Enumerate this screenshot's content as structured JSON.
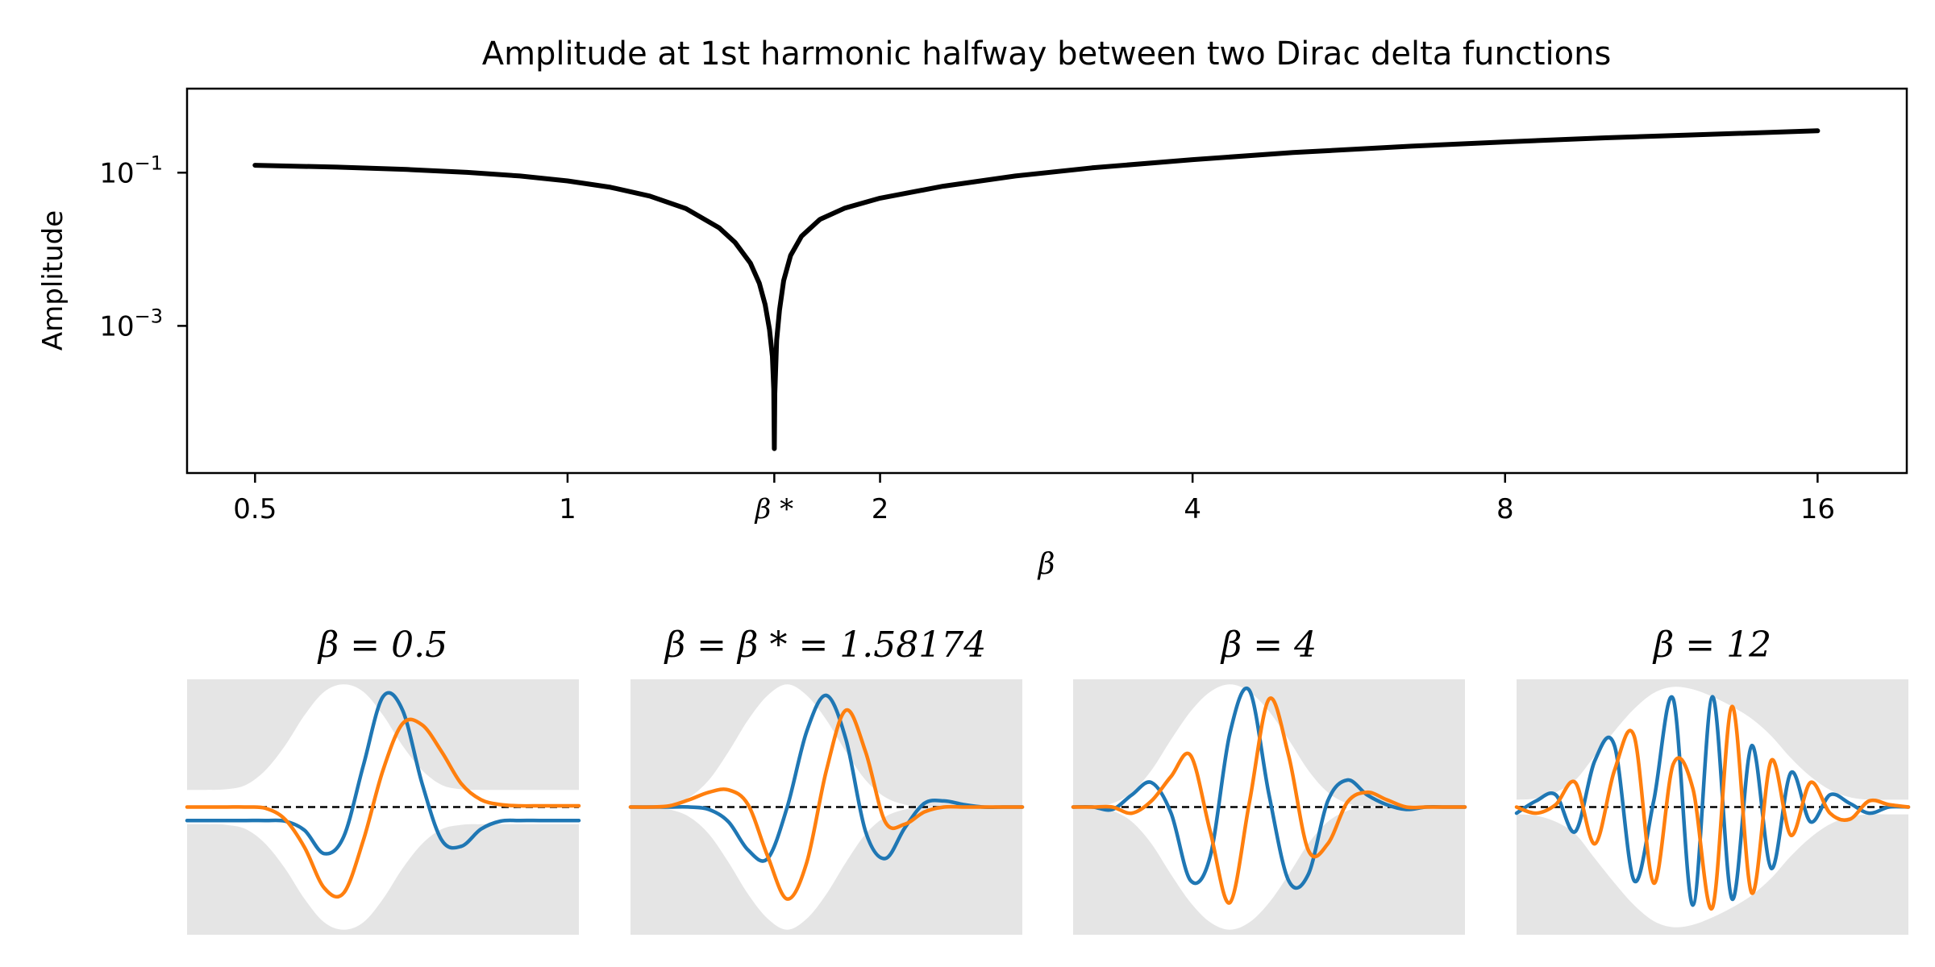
{
  "chart_data": [
    {
      "type": "line",
      "title": "Amplitude at 1st harmonic halfway between two Dirac delta functions",
      "xlabel": "β",
      "ylabel": "Amplitude",
      "xscale": "log2",
      "yscale": "log10",
      "xlim": [
        0.43,
        19.5
      ],
      "ylim": [
        1.2e-05,
        1.25
      ],
      "x_ticks": [
        {
          "value": 0.5,
          "label": "0.5"
        },
        {
          "value": 1,
          "label": "1"
        },
        {
          "value": 1.58174,
          "label": "β *"
        },
        {
          "value": 2,
          "label": "2"
        },
        {
          "value": 4,
          "label": "4"
        },
        {
          "value": 8,
          "label": "8"
        },
        {
          "value": 16,
          "label": "16"
        }
      ],
      "y_ticks": [
        {
          "value": 0.1,
          "base": "10",
          "exp": "−1"
        },
        {
          "value": 0.001,
          "base": "10",
          "exp": "−3"
        }
      ],
      "grid": false,
      "series": [
        {
          "color": "#000000",
          "x": [
            0.5,
            0.6,
            0.7,
            0.8,
            0.9,
            1.0,
            1.1,
            1.2,
            1.3,
            1.4,
            1.45,
            1.5,
            1.53,
            1.55,
            1.565,
            1.575,
            1.58,
            1.58174,
            1.5835,
            1.59,
            1.6,
            1.615,
            1.64,
            1.68,
            1.75,
            1.85,
            2.0,
            2.3,
            2.7,
            3.2,
            4.0,
            5.0,
            6.5,
            8.0,
            10.0,
            12.0,
            16.0
          ],
          "y": [
            0.125,
            0.118,
            0.11,
            0.101,
            0.0905,
            0.078,
            0.0645,
            0.0495,
            0.034,
            0.019,
            0.0123,
            0.0066,
            0.0036,
            0.0019,
            0.0009,
            0.0004,
            0.00015,
            2.5e-05,
            0.00013,
            0.00065,
            0.0016,
            0.0039,
            0.0083,
            0.0148,
            0.0245,
            0.0345,
            0.0465,
            0.0665,
            0.0905,
            0.1155,
            0.148,
            0.183,
            0.222,
            0.252,
            0.285,
            0.31,
            0.352
          ]
        }
      ]
    },
    {
      "type": "line",
      "title": "β = 0.5",
      "beta": 0.5,
      "x": [
        0,
        0.05,
        0.1,
        0.15,
        0.2,
        0.25,
        0.3,
        0.35,
        0.4,
        0.45,
        0.5,
        0.55,
        0.6,
        0.65,
        0.7,
        0.75,
        0.8,
        0.85,
        0.9,
        0.95,
        1
      ],
      "series": [
        {
          "color": "#1f77b4",
          "y": [
            -0.11,
            -0.11,
            -0.11,
            -0.11,
            -0.11,
            -0.115,
            -0.19,
            -0.38,
            -0.24,
            0.34,
            0.9,
            0.79,
            0.19,
            -0.27,
            -0.32,
            -0.18,
            -0.115,
            -0.11,
            -0.11,
            -0.11,
            -0.11
          ]
        },
        {
          "color": "#ff7f0e",
          "y": [
            0.0,
            0.0,
            0.0,
            0.0,
            -0.01,
            -0.1,
            -0.33,
            -0.66,
            -0.7,
            -0.27,
            0.3,
            0.68,
            0.67,
            0.45,
            0.19,
            0.06,
            0.02,
            0.01,
            0.01,
            0.01,
            0.01
          ]
        }
      ],
      "envelope": [
        0.14,
        0.14,
        0.145,
        0.18,
        0.3,
        0.5,
        0.75,
        0.94,
        1.0,
        0.94,
        0.75,
        0.5,
        0.3,
        0.18,
        0.145,
        0.14,
        0.14,
        0.14,
        0.14,
        0.14,
        0.14
      ]
    },
    {
      "type": "line",
      "title": "β = β * = 1.58174",
      "beta": 1.58174,
      "x": [
        0,
        0.05,
        0.1,
        0.15,
        0.2,
        0.25,
        0.3,
        0.35,
        0.4,
        0.45,
        0.5,
        0.55,
        0.6,
        0.65,
        0.7,
        0.75,
        0.8,
        0.85,
        0.9,
        0.95,
        1
      ],
      "series": [
        {
          "color": "#1f77b4",
          "y": [
            0.0,
            0.0,
            0.0,
            0.0,
            -0.02,
            -0.12,
            -0.35,
            -0.42,
            0.0,
            0.62,
            0.91,
            0.55,
            -0.2,
            -0.42,
            -0.17,
            0.03,
            0.05,
            0.02,
            0.0,
            0.0,
            0.0
          ]
        },
        {
          "color": "#ff7f0e",
          "y": [
            0.0,
            0.0,
            0.01,
            0.06,
            0.12,
            0.14,
            0.02,
            -0.4,
            -0.75,
            -0.45,
            0.3,
            0.79,
            0.45,
            -0.12,
            -0.14,
            -0.04,
            0.0,
            0.0,
            0.0,
            0.0,
            0.0
          ]
        }
      ],
      "envelope": [
        0.0,
        0.0,
        0.02,
        0.08,
        0.22,
        0.45,
        0.71,
        0.91,
        1.0,
        0.91,
        0.71,
        0.45,
        0.22,
        0.08,
        0.02,
        0.0,
        0.0,
        0.0,
        0.0,
        0.0,
        0.0
      ]
    },
    {
      "type": "line",
      "title": "β = 4",
      "beta": 4,
      "x": [
        0,
        0.05,
        0.1,
        0.15,
        0.2,
        0.25,
        0.3,
        0.35,
        0.4,
        0.45,
        0.5,
        0.55,
        0.6,
        0.65,
        0.7,
        0.75,
        0.8,
        0.85,
        0.9,
        0.95,
        1
      ],
      "series": [
        {
          "color": "#1f77b4",
          "y": [
            0.0,
            0.0,
            -0.02,
            0.1,
            0.2,
            -0.05,
            -0.6,
            -0.4,
            0.6,
            0.95,
            0.1,
            -0.6,
            -0.55,
            0.05,
            0.22,
            0.1,
            0.02,
            -0.02,
            0.0,
            0.0,
            0.0
          ]
        },
        {
          "color": "#ff7f0e",
          "y": [
            0.0,
            0.0,
            0.0,
            -0.05,
            0.05,
            0.25,
            0.42,
            -0.2,
            -0.78,
            0.04,
            0.88,
            0.42,
            -0.35,
            -0.3,
            0.04,
            0.12,
            0.06,
            0.0,
            0.0,
            0.0,
            0.0
          ]
        }
      ],
      "envelope": [
        0.0,
        0.0,
        0.03,
        0.12,
        0.3,
        0.55,
        0.78,
        0.94,
        1.0,
        0.94,
        0.78,
        0.55,
        0.3,
        0.12,
        0.03,
        0.0,
        0.0,
        0.0,
        0.0,
        0.0,
        0.0
      ]
    },
    {
      "type": "line",
      "title": "β = 12",
      "beta": 12,
      "x": [
        0,
        0.05,
        0.1,
        0.15,
        0.2,
        0.25,
        0.3,
        0.35,
        0.4,
        0.45,
        0.5,
        0.55,
        0.6,
        0.65,
        0.7,
        0.75,
        0.8,
        0.85,
        0.9,
        0.95,
        1
      ],
      "series": [
        {
          "color": "#1f77b4",
          "y": [
            -0.05,
            0.05,
            0.1,
            -0.2,
            0.38,
            0.5,
            -0.6,
            0.05,
            0.88,
            -0.8,
            0.9,
            -0.75,
            0.5,
            -0.5,
            0.28,
            -0.12,
            0.1,
            0.03,
            -0.05,
            0.0,
            0.0
          ]
        },
        {
          "color": "#ff7f0e",
          "y": [
            0.0,
            -0.05,
            0.02,
            0.2,
            -0.3,
            0.3,
            0.58,
            -0.62,
            0.35,
            0.15,
            -0.82,
            0.82,
            -0.7,
            0.38,
            -0.23,
            0.2,
            -0.05,
            -0.1,
            0.05,
            0.02,
            0.0
          ]
        }
      ],
      "envelope": [
        0.06,
        0.07,
        0.12,
        0.22,
        0.42,
        0.62,
        0.8,
        0.93,
        0.98,
        0.96,
        0.9,
        0.82,
        0.72,
        0.58,
        0.4,
        0.25,
        0.14,
        0.08,
        0.06,
        0.06,
        0.06
      ]
    }
  ]
}
